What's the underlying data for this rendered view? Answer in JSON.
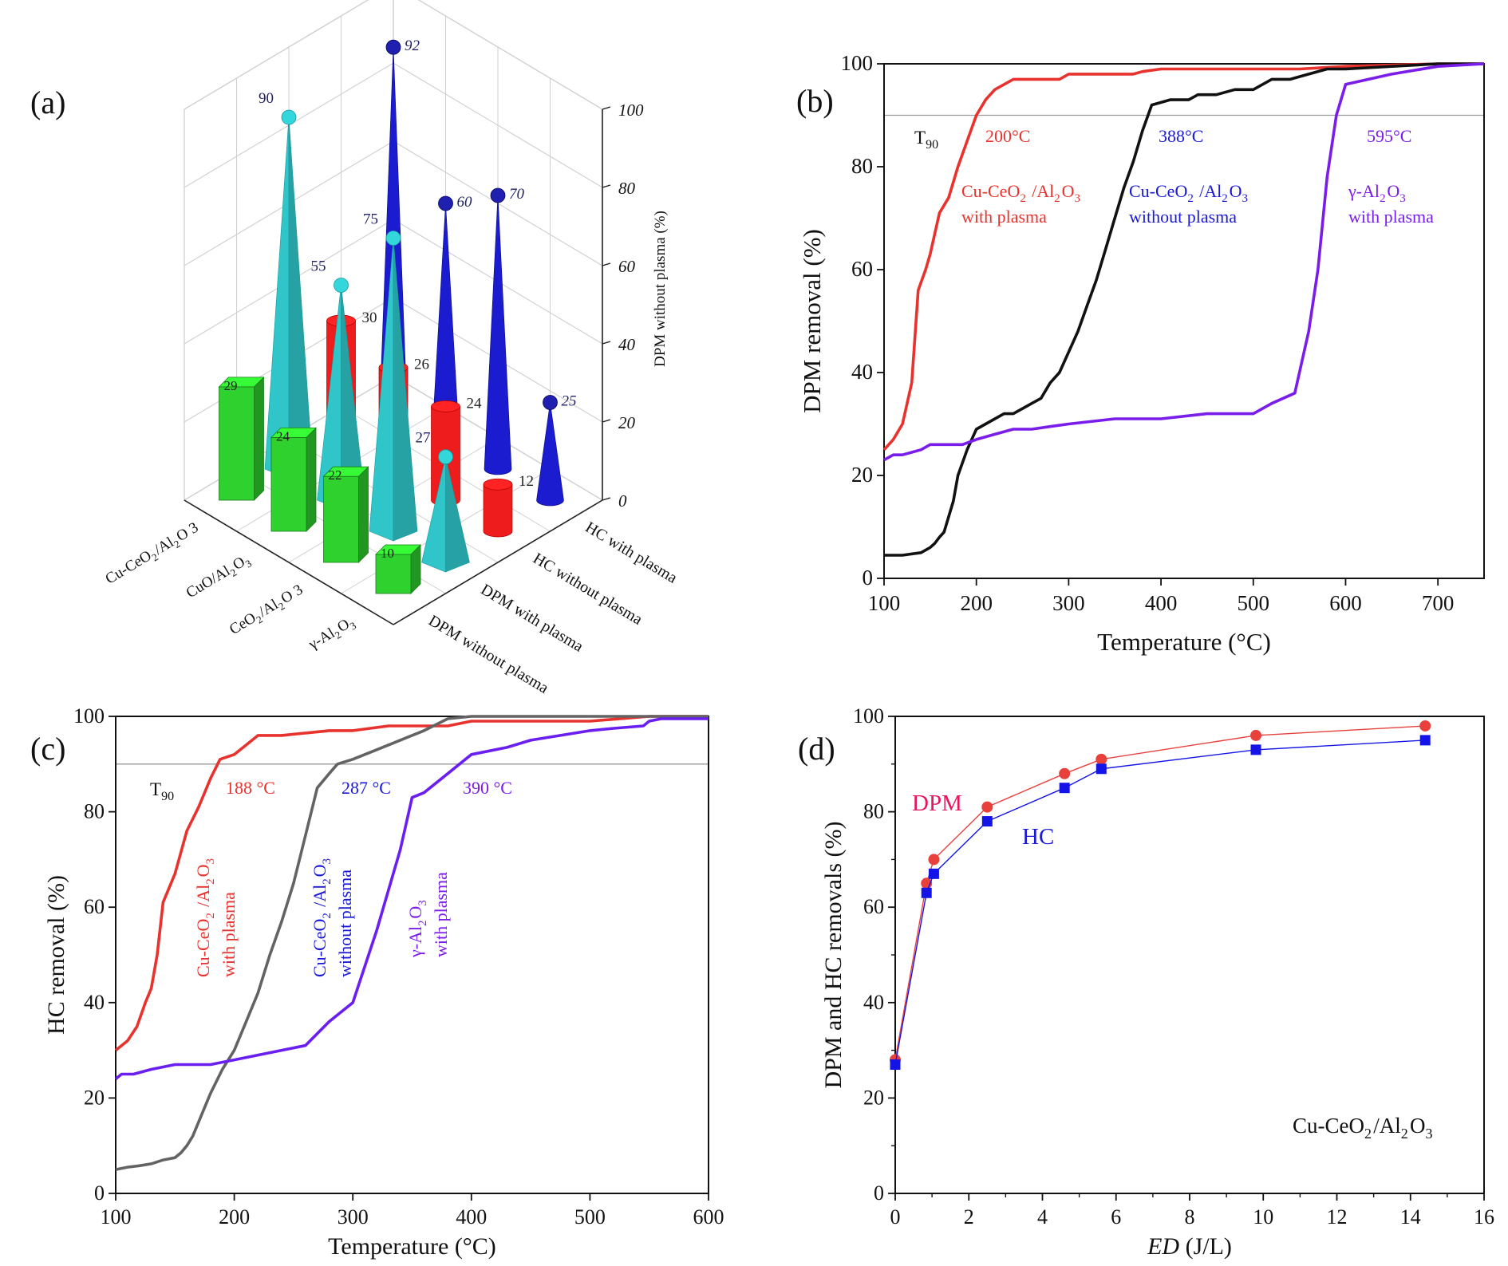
{
  "chart_data": [
    {
      "id": "a",
      "panel_label": "(a)",
      "type": "bar3d",
      "zlabel": "DPM without plasma (%)",
      "zticks": [
        "0",
        "20",
        "40",
        "60",
        "80",
        "100"
      ],
      "zlim": [
        0,
        100
      ],
      "catalysts": [
        "Cu-CeO2/Al2O3",
        "CuO/Al2O3",
        "CeO2/Al2O3",
        "γ-Al2O3"
      ],
      "catalyst_labels": [
        {
          "main": "Cu-CeO",
          "sub": "2",
          "mid": "/Al",
          "sub2": "2",
          "end": "O 3"
        },
        {
          "main": "CuO/Al",
          "sub": "2",
          "mid": "O",
          "sub2": "3",
          "end": ""
        },
        {
          "main": "CeO",
          "sub": "2",
          "mid": "/Al",
          "sub2": "2",
          "end": "O 3"
        },
        {
          "main": "γ-Al",
          "sub": "2",
          "mid": "O",
          "sub2": "3",
          "end": ""
        }
      ],
      "conditions": [
        "HC with plasma",
        "HC without plasma",
        "DPM with plasma",
        "DPM without plasma"
      ],
      "series": [
        {
          "name": "DPM without plasma",
          "shape": "box",
          "color": "#2ed12e",
          "values": [
            29,
            24,
            22,
            10
          ]
        },
        {
          "name": "DPM with plasma",
          "shape": "pyramid",
          "color": "#33d6db",
          "values": [
            90,
            55,
            75,
            27
          ]
        },
        {
          "name": "HC without plasma",
          "shape": "cylinder",
          "color": "#ee1c1c",
          "values": [
            30,
            26,
            24,
            12
          ]
        },
        {
          "name": "HC with plasma",
          "shape": "cone",
          "color": "#1b1bd0",
          "values": [
            92,
            60,
            70,
            25
          ]
        }
      ]
    },
    {
      "id": "b",
      "panel_label": "(b)",
      "type": "line",
      "xlabel": "Temperature (°C)",
      "ylabel": "DPM removal (%)",
      "xlim": [
        100,
        750
      ],
      "ylim": [
        0,
        100
      ],
      "xticks": [
        100,
        200,
        300,
        400,
        500,
        600,
        700
      ],
      "yticks": [
        0,
        20,
        40,
        60,
        80,
        100
      ],
      "t90_level": 90,
      "t90_label": "T",
      "t90_sub": "90",
      "series": [
        {
          "name": "Cu-CeO2/Al2O3 with plasma",
          "color": "#e8322d",
          "x": [
            100,
            110,
            120,
            130,
            137,
            145,
            150,
            160,
            170,
            180,
            190,
            200,
            210,
            220,
            240,
            260,
            280,
            290,
            300,
            330,
            350,
            370,
            380,
            400,
            450,
            500,
            550,
            600,
            700,
            750
          ],
          "y": [
            25,
            27,
            30,
            38,
            56,
            60,
            63,
            71,
            74,
            80,
            85,
            90,
            93,
            95,
            97,
            97,
            97,
            97,
            98,
            98,
            98,
            98,
            98.5,
            99,
            99,
            99,
            99,
            99.5,
            100,
            100
          ]
        },
        {
          "name": "Cu-CeO2/Al2O3 without plasma",
          "color": "#111111",
          "x": [
            100,
            120,
            140,
            150,
            155,
            160,
            165,
            170,
            175,
            180,
            190,
            200,
            210,
            230,
            240,
            260,
            270,
            280,
            290,
            300,
            310,
            320,
            330,
            340,
            350,
            360,
            370,
            380,
            390,
            400,
            410,
            420,
            430,
            440,
            450,
            460,
            480,
            490,
            500,
            520,
            540,
            560,
            580,
            600,
            650,
            700,
            750
          ],
          "y": [
            4.5,
            4.5,
            5,
            6,
            6.8,
            8,
            9,
            12,
            15,
            20,
            25,
            29,
            30,
            32,
            32,
            34,
            35,
            38,
            40,
            44,
            48,
            53,
            58,
            64,
            70,
            76,
            81,
            87,
            92,
            92.5,
            93,
            93,
            93,
            94,
            94,
            94,
            95,
            95,
            95,
            97,
            97,
            98,
            99,
            99,
            99.5,
            100,
            100
          ]
        },
        {
          "name": "γ-Al2O3 with plasma",
          "color": "#7a1cea",
          "x": [
            100,
            110,
            120,
            140,
            150,
            175,
            185,
            200,
            220,
            240,
            260,
            280,
            300,
            350,
            400,
            450,
            475,
            500,
            520,
            545,
            550,
            560,
            570,
            580,
            590,
            600,
            650,
            700,
            750
          ],
          "y": [
            23,
            24,
            24,
            25,
            26,
            26,
            26,
            27,
            28,
            29,
            29,
            29.5,
            30,
            31,
            31,
            32,
            32,
            32,
            34,
            36,
            40,
            48,
            60,
            78,
            90,
            96,
            98,
            99.5,
            100
          ]
        }
      ],
      "annotations": [
        {
          "text": "200°C",
          "color": "#e8322d"
        },
        {
          "text": "388°C",
          "color": "#1a1ad6"
        },
        {
          "text": "595°C",
          "color": "#7a1cea"
        }
      ],
      "curve_labels": [
        {
          "l1a": "Cu-CeO",
          "l1s": "2",
          "l1b": " /Al",
          "l1s2": "2",
          "l1c": "O",
          "l1s3": "3",
          "l2": "with plasma",
          "color": "#e8322d"
        },
        {
          "l1a": "Cu-CeO",
          "l1s": "2",
          "l1b": " /Al",
          "l1s2": "2",
          "l1c": "O",
          "l1s3": "3",
          "l2": "without plasma",
          "color": "#1a1ad6"
        },
        {
          "l1a": "γ-Al",
          "l1s": "2",
          "l1b": "O",
          "l1s2": "3",
          "l1c": "",
          "l1s3": "",
          "l2": "with plasma",
          "color": "#7a1cea"
        }
      ]
    },
    {
      "id": "c",
      "panel_label": "(c)",
      "type": "line",
      "xlabel": "Temperature (°C)",
      "ylabel": "HC removal (%)",
      "xlim": [
        100,
        600
      ],
      "ylim": [
        0,
        100
      ],
      "xticks": [
        100,
        200,
        300,
        400,
        500,
        600
      ],
      "yticks": [
        0,
        20,
        40,
        60,
        80,
        100
      ],
      "t90_level": 90,
      "t90_label": "T",
      "t90_sub": "90",
      "series": [
        {
          "name": "Cu-CeO2/Al2O3 with plasma",
          "color": "#e8322d",
          "x": [
            100,
            110,
            118,
            125,
            130,
            135,
            140,
            150,
            160,
            170,
            180,
            188,
            200,
            210,
            220,
            240,
            260,
            280,
            300,
            330,
            360,
            380,
            400,
            450,
            500,
            550,
            600
          ],
          "y": [
            30,
            32,
            35,
            40,
            43,
            50,
            61,
            67,
            76,
            81,
            87,
            91,
            92,
            94,
            96,
            96,
            96.5,
            97,
            97,
            98,
            98,
            98,
            99,
            99,
            99,
            100,
            100
          ]
        },
        {
          "name": "Cu-CeO2/Al2O3 without plasma",
          "color": "#636363",
          "x": [
            100,
            110,
            120,
            130,
            140,
            150,
            155,
            160,
            165,
            170,
            175,
            180,
            190,
            200,
            210,
            220,
            230,
            240,
            250,
            260,
            270,
            280,
            287,
            300,
            320,
            340,
            360,
            380,
            400,
            450,
            500,
            600
          ],
          "y": [
            5,
            5.5,
            5.8,
            6.2,
            7,
            7.5,
            8.5,
            10,
            12,
            15,
            18,
            21,
            26,
            30,
            36,
            42,
            50,
            57,
            65,
            75,
            85,
            88,
            90,
            91,
            93,
            95,
            97,
            99.5,
            100,
            100,
            100,
            100
          ]
        },
        {
          "name": "γ-Al2O3 with plasma",
          "color": "#6a1ef0",
          "x": [
            100,
            105,
            115,
            130,
            150,
            160,
            180,
            200,
            220,
            240,
            260,
            280,
            300,
            320,
            340,
            350,
            360,
            380,
            390,
            400,
            430,
            450,
            475,
            500,
            520,
            545,
            550,
            560,
            600
          ],
          "y": [
            24,
            25,
            25,
            26,
            27,
            27,
            27,
            28,
            29,
            30,
            31,
            36,
            40,
            55,
            72,
            83,
            84,
            88,
            90,
            92,
            93.5,
            95,
            96,
            97,
            97.5,
            98,
            99,
            99.5,
            99.5
          ]
        }
      ],
      "annotations": [
        {
          "text": "188 °C",
          "color": "#e8322d"
        },
        {
          "text": "287 °C",
          "color": "#1a1ad6"
        },
        {
          "text": "390 °C",
          "color": "#7a1cea"
        }
      ],
      "curve_labels": [
        {
          "l1a": "Cu-CeO",
          "l1s": "2",
          "l1b": " /Al",
          "l1s2": "2",
          "l1c": "O",
          "l1s3": "3",
          "l2": "with plasma",
          "color": "#e8322d"
        },
        {
          "l1a": "Cu-CeO",
          "l1s": "2",
          "l1b": " /Al",
          "l1s2": "2",
          "l1c": "O",
          "l1s3": "3",
          "l2": "without plasma",
          "color": "#1a1ad6"
        },
        {
          "l1a": "γ-Al",
          "l1s": "2",
          "l1b": "O",
          "l1s2": "3",
          "l1c": "",
          "l1s3": "",
          "l2": "with plasma",
          "color": "#7a1cea"
        }
      ]
    },
    {
      "id": "d",
      "panel_label": "(d)",
      "type": "line-scatter",
      "xlabel_italic": "ED",
      "xlabel_rest": " (J/L)",
      "ylabel": "DPM and HC removals (%)",
      "xlim": [
        0,
        16
      ],
      "ylim": [
        0,
        100
      ],
      "xticks": [
        0,
        2,
        4,
        6,
        8,
        10,
        12,
        14,
        16
      ],
      "yticks": [
        0,
        20,
        40,
        60,
        80,
        100
      ],
      "catalyst_note": {
        "a": "Cu-CeO",
        "s": "2",
        "b": "/Al",
        "s2": "2",
        "c": "O",
        "s3": "3"
      },
      "series": [
        {
          "name": "DPM",
          "label_color": "#e8175d",
          "color": "#e8413c",
          "marker": "circle",
          "x": [
            0,
            0.85,
            1.05,
            2.5,
            4.6,
            5.6,
            9.8,
            14.4
          ],
          "y": [
            28,
            65,
            70,
            81,
            88,
            91,
            96,
            98
          ]
        },
        {
          "name": "HC",
          "label_color": "#1a1ad6",
          "color": "#1414e6",
          "marker": "square",
          "x": [
            0,
            0.85,
            1.05,
            2.5,
            4.6,
            5.6,
            9.8,
            14.4
          ],
          "y": [
            27,
            63,
            67,
            78,
            85,
            89,
            93,
            95
          ]
        }
      ]
    }
  ]
}
